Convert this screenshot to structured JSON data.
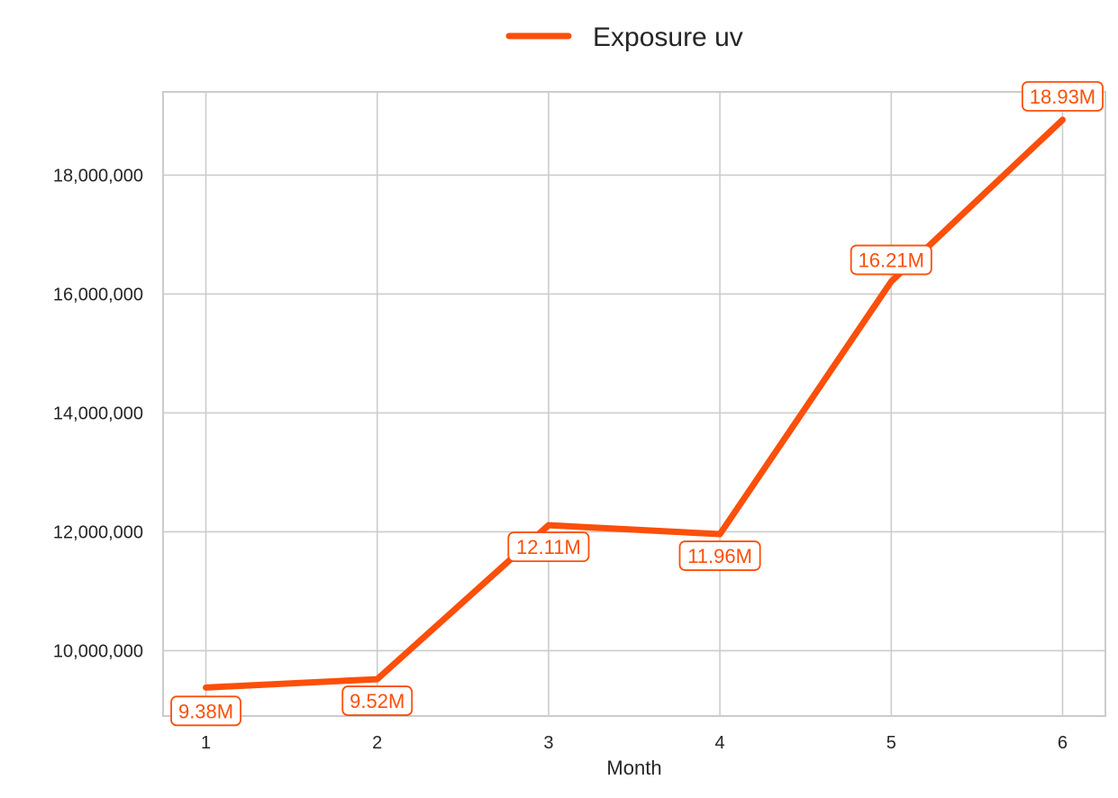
{
  "chart_data": {
    "type": "line",
    "title": "",
    "xlabel": "Month",
    "ylabel": "",
    "x": [
      1,
      2,
      3,
      4,
      5,
      6
    ],
    "x_tick_labels": [
      "1",
      "2",
      "3",
      "4",
      "5",
      "6"
    ],
    "y_ticks": [
      10000000,
      12000000,
      14000000,
      16000000,
      18000000
    ],
    "y_tick_labels": [
      "10,000,000",
      "12,000,000",
      "14,000,000",
      "16,000,000",
      "18,000,000"
    ],
    "xlim": [
      0.75,
      6.25
    ],
    "ylim": [
      8900000,
      19400000
    ],
    "grid": true,
    "legend_position": "top-center",
    "series": [
      {
        "name": "Exposure uv",
        "color": "#fb4f0a",
        "values": [
          9380000,
          9520000,
          12110000,
          11960000,
          16210000,
          18930000
        ],
        "data_labels": [
          "9.38M",
          "9.52M",
          "12.11M",
          "11.96M",
          "16.21M",
          "18.93M"
        ]
      }
    ]
  }
}
